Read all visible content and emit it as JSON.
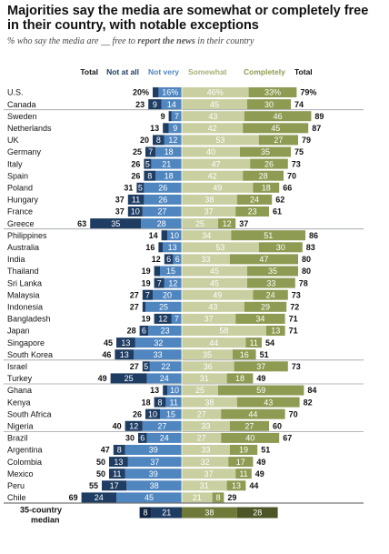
{
  "title": "Majorities say the media are somewhat or completely free in their country, with notable exceptions",
  "subtitle": {
    "pre": "% who say the media are __ free to ",
    "emph": "report the news",
    "post": " in their country"
  },
  "colors": {
    "not_at_all": "#1f3d63",
    "not_very": "#4f86c0",
    "somewhat": "#c9cfa0",
    "completely": "#8e9b52",
    "separator": "#9aa0a6",
    "median_dark": "#1f3d63"
  },
  "chart_data": {
    "type": "bar",
    "subtype": "diverging-stacked",
    "headers": {
      "neg_total": "Total",
      "not_at_all": "Not at all",
      "not_very": "Not very",
      "somewhat": "Somewhat",
      "completely": "Completely",
      "pos_total": "Total"
    },
    "groups": [
      {
        "rows": [
          {
            "country": "U.S.",
            "not_at_all": 4,
            "not_very": 16,
            "neg_total": 20,
            "somewhat": 46,
            "completely": 33,
            "pos_total": 79,
            "pct": true
          },
          {
            "country": "Canada",
            "not_at_all": 9,
            "not_very": 14,
            "neg_total": 23,
            "somewhat": 45,
            "completely": 30,
            "pos_total": 74
          }
        ]
      },
      {
        "rows": [
          {
            "country": "Sweden",
            "not_at_all": 2,
            "not_very": 7,
            "neg_total": 9,
            "somewhat": 43,
            "completely": 46,
            "pos_total": 89
          },
          {
            "country": "Netherlands",
            "not_at_all": 4,
            "not_very": 9,
            "neg_total": 13,
            "somewhat": 42,
            "completely": 45,
            "pos_total": 87
          },
          {
            "country": "UK",
            "not_at_all": 8,
            "not_very": 12,
            "neg_total": 20,
            "somewhat": 53,
            "completely": 27,
            "pos_total": 79
          },
          {
            "country": "Germany",
            "not_at_all": 7,
            "not_very": 18,
            "neg_total": 25,
            "somewhat": 40,
            "completely": 35,
            "pos_total": 75
          },
          {
            "country": "Italy",
            "not_at_all": 5,
            "not_very": 21,
            "neg_total": 26,
            "somewhat": 47,
            "completely": 26,
            "pos_total": 73
          },
          {
            "country": "Spain",
            "not_at_all": 8,
            "not_very": 18,
            "neg_total": 26,
            "somewhat": 42,
            "completely": 28,
            "pos_total": 70
          },
          {
            "country": "Poland",
            "not_at_all": 5,
            "not_very": 26,
            "neg_total": 31,
            "somewhat": 49,
            "completely": 18,
            "pos_total": 66
          },
          {
            "country": "Hungary",
            "not_at_all": 11,
            "not_very": 26,
            "neg_total": 37,
            "somewhat": 38,
            "completely": 24,
            "pos_total": 62
          },
          {
            "country": "France",
            "not_at_all": 10,
            "not_very": 27,
            "neg_total": 37,
            "somewhat": 37,
            "completely": 23,
            "pos_total": 61
          },
          {
            "country": "Greece",
            "not_at_all": 35,
            "not_very": 28,
            "neg_total": 63,
            "somewhat": 25,
            "completely": 12,
            "pos_total": 37
          }
        ]
      },
      {
        "rows": [
          {
            "country": "Philippines",
            "not_at_all": 4,
            "not_very": 10,
            "neg_total": 14,
            "somewhat": 34,
            "completely": 51,
            "pos_total": 86
          },
          {
            "country": "Australia",
            "not_at_all": 3,
            "not_very": 13,
            "neg_total": 16,
            "somewhat": 53,
            "completely": 30,
            "pos_total": 83
          },
          {
            "country": "India",
            "not_at_all": 6,
            "not_very": 6,
            "neg_total": 12,
            "somewhat": 33,
            "completely": 47,
            "pos_total": 80
          },
          {
            "country": "Thailand",
            "not_at_all": 4,
            "not_very": 15,
            "neg_total": 19,
            "somewhat": 45,
            "completely": 35,
            "pos_total": 80
          },
          {
            "country": "Sri Lanka",
            "not_at_all": 7,
            "not_very": 12,
            "neg_total": 19,
            "somewhat": 45,
            "completely": 33,
            "pos_total": 78
          },
          {
            "country": "Malaysia",
            "not_at_all": 7,
            "not_very": 20,
            "neg_total": 27,
            "somewhat": 49,
            "completely": 24,
            "pos_total": 73
          },
          {
            "country": "Indonesia",
            "not_at_all": 2,
            "not_very": 25,
            "neg_total": 27,
            "somewhat": 43,
            "completely": 29,
            "pos_total": 72
          },
          {
            "country": "Bangladesh",
            "not_at_all": 12,
            "not_very": 7,
            "neg_total": 19,
            "somewhat": 37,
            "completely": 34,
            "pos_total": 71
          },
          {
            "country": "Japan",
            "not_at_all": 6,
            "not_very": 23,
            "neg_total": 28,
            "somewhat": 58,
            "completely": 13,
            "pos_total": 71
          },
          {
            "country": "Singapore",
            "not_at_all": 13,
            "not_very": 32,
            "neg_total": 45,
            "somewhat": 44,
            "completely": 11,
            "pos_total": 54
          },
          {
            "country": "South Korea",
            "not_at_all": 13,
            "not_very": 33,
            "neg_total": 46,
            "somewhat": 35,
            "completely": 16,
            "pos_total": 51
          }
        ]
      },
      {
        "rows": [
          {
            "country": "Israel",
            "not_at_all": 5,
            "not_very": 22,
            "neg_total": 27,
            "somewhat": 36,
            "completely": 37,
            "pos_total": 73
          },
          {
            "country": "Turkey",
            "not_at_all": 25,
            "not_very": 24,
            "neg_total": 49,
            "somewhat": 31,
            "completely": 18,
            "pos_total": 49
          }
        ]
      },
      {
        "rows": [
          {
            "country": "Ghana",
            "not_at_all": 3,
            "not_very": 10,
            "neg_total": 13,
            "somewhat": 25,
            "completely": 59,
            "pos_total": 84
          },
          {
            "country": "Kenya",
            "not_at_all": 8,
            "not_very": 11,
            "neg_total": 18,
            "somewhat": 38,
            "completely": 43,
            "pos_total": 82
          },
          {
            "country": "South Africa",
            "not_at_all": 10,
            "not_very": 15,
            "neg_total": 26,
            "somewhat": 27,
            "completely": 44,
            "pos_total": 70
          },
          {
            "country": "Nigeria",
            "not_at_all": 12,
            "not_very": 27,
            "neg_total": 40,
            "somewhat": 33,
            "completely": 27,
            "pos_total": 60
          }
        ]
      },
      {
        "rows": [
          {
            "country": "Brazil",
            "not_at_all": 6,
            "not_very": 24,
            "neg_total": 30,
            "somewhat": 27,
            "completely": 40,
            "pos_total": 67
          },
          {
            "country": "Argentina",
            "not_at_all": 8,
            "not_very": 39,
            "neg_total": 47,
            "somewhat": 33,
            "completely": 19,
            "pos_total": 51
          },
          {
            "country": "Colombia",
            "not_at_all": 13,
            "not_very": 37,
            "neg_total": 50,
            "somewhat": 32,
            "completely": 17,
            "pos_total": 49
          },
          {
            "country": "Mexico",
            "not_at_all": 11,
            "not_very": 39,
            "neg_total": 50,
            "somewhat": 37,
            "completely": 11,
            "pos_total": 49
          },
          {
            "country": "Peru",
            "not_at_all": 17,
            "not_very": 38,
            "neg_total": 55,
            "somewhat": 31,
            "completely": 13,
            "pos_total": 44
          },
          {
            "country": "Chile",
            "not_at_all": 24,
            "not_very": 45,
            "neg_total": 69,
            "somewhat": 21,
            "completely": 8,
            "pos_total": 29
          }
        ]
      }
    ],
    "median": {
      "label_line1": "35-country",
      "label_line2": "median",
      "not_at_all": 8,
      "not_very": 21,
      "somewhat": 38,
      "completely": 28
    }
  }
}
